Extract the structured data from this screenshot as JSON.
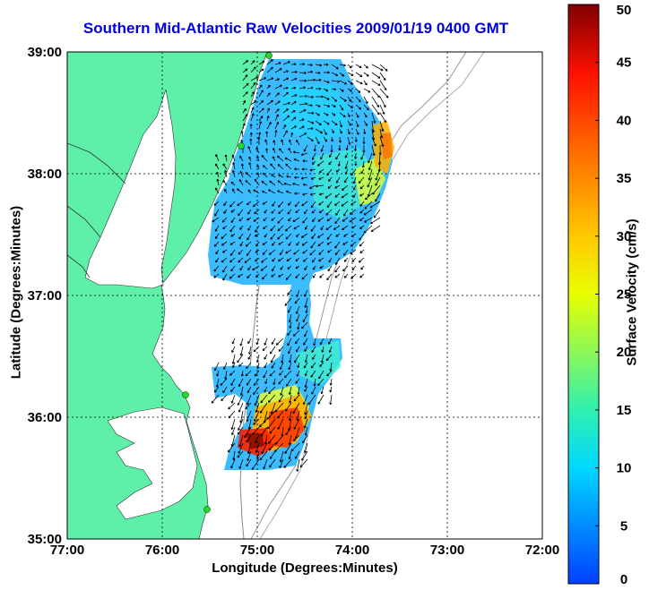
{
  "title": "Southern Mid-Atlantic Raw Velocities 2009/01/19 0400 GMT",
  "xlabel": "Longitude (Degrees:Minutes)",
  "ylabel": "Latitude (Degrees:Minutes)",
  "colorbar": {
    "label": "Surface Velocity (cm/s)",
    "min": 0,
    "max": 50,
    "ticks": [
      "0",
      "5",
      "10",
      "15",
      "20",
      "25",
      "30",
      "35",
      "40",
      "45",
      "50"
    ]
  },
  "map": {
    "lon_ticks": [
      "77:00",
      "76:00",
      "75:00",
      "74:00",
      "73:00",
      "72:00"
    ],
    "lat_ticks": [
      "39:00",
      "38:00",
      "37:00",
      "36:00",
      "35:00"
    ],
    "lon_range": [
      -77,
      -72
    ],
    "lat_range": [
      35,
      39
    ],
    "land_color": "#5ef0a8",
    "grid": "dotted"
  },
  "colors": {
    "title": "#0000e0",
    "site_markers": "#22dd22"
  }
}
